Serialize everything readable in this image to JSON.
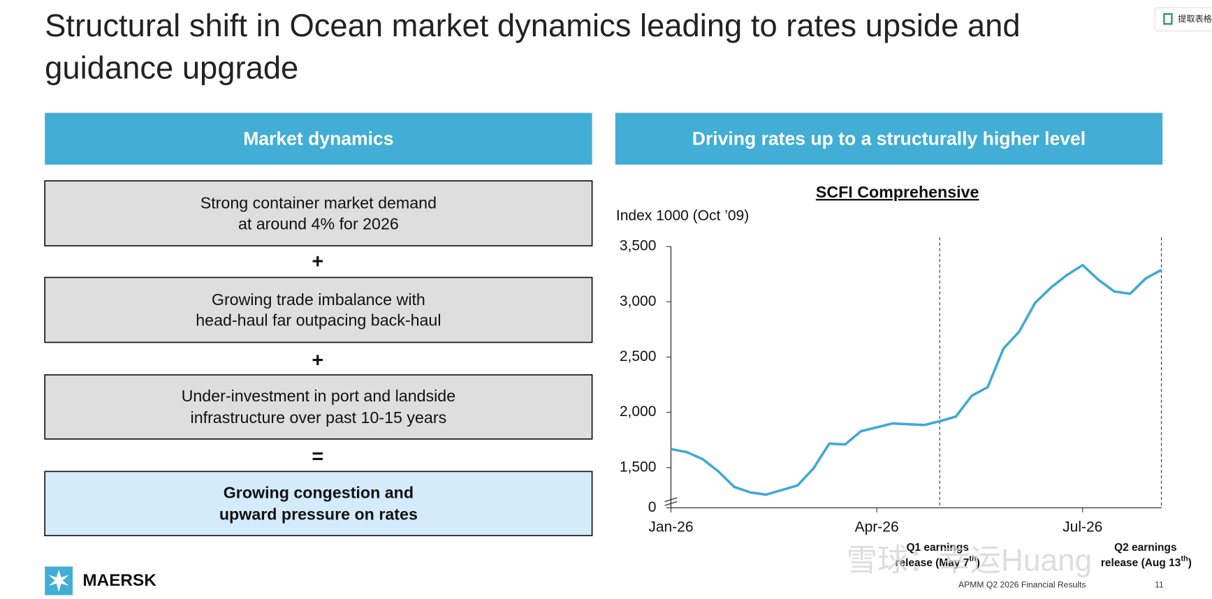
{
  "toolbar": {
    "button": "提取表格"
  },
  "header": {
    "title_lines": [
      "Structural shift in Ocean market dynamics leading to rates upside and",
      "guidance upgrade"
    ]
  },
  "left_panel": {
    "heading": "Market dynamics",
    "boxes": [
      {
        "lines": [
          "Strong container market demand",
          "at around 4% for 2026"
        ]
      },
      {
        "lines": [
          "Growing trade imbalance with",
          "head-haul far outpacing back-haul"
        ]
      },
      {
        "lines": [
          "Under-investment in port and landside",
          "infrastructure over past 10-15 years"
        ]
      },
      {
        "lines": [
          "Growing congestion and",
          "upward pressure on rates"
        ]
      }
    ],
    "operators": [
      "+",
      "+",
      "="
    ]
  },
  "right_panel": {
    "heading": "Driving rates up to a structurally higher level"
  },
  "chart_data": {
    "type": "line",
    "title": "SCFI Comprehensive",
    "y_label": "Index 1000 (Oct ’09)",
    "categories": [
      "Jan-26",
      null,
      null,
      null,
      null,
      null,
      null,
      null,
      null,
      null,
      null,
      null,
      null,
      "Apr-26",
      null,
      null,
      null,
      null,
      null,
      null,
      null,
      null,
      null,
      null,
      null,
      null,
      "Jul-26",
      null,
      null,
      null,
      null,
      null
    ],
    "series": [
      {
        "color": "#3fa9d5",
        "values": [
          1668,
          1640,
          1577,
          1465,
          1325,
          1276,
          1255,
          1297,
          1339,
          1493,
          1717,
          1710,
          1829,
          1864,
          1899,
          1892,
          1885,
          1920,
          1962,
          2150,
          2227,
          2577,
          2731,
          2990,
          3129,
          3241,
          3332,
          3199,
          3094,
          3073,
          3213,
          3290
        ]
      }
    ],
    "ylim": [
      0,
      3500
    ],
    "yticks": [
      0,
      {
        "value": 1500,
        "label": "1,500"
      },
      {
        "value": 2000,
        "label": "2,000"
      },
      {
        "value": 2500,
        "label": "2,500"
      },
      {
        "value": 3000,
        "label": "3,000"
      },
      {
        "value": 3500,
        "label": "3,500"
      }
    ],
    "axis_break": true,
    "annotations": [
      {
        "line1": "Q1 earnings",
        "line2": "release (May 7",
        "sup": "th",
        "end": ")"
      },
      {
        "line1": "Q2 earnings",
        "line2": "release (Aug 13",
        "sup": "th",
        "end": ")"
      }
    ]
  },
  "footer": {
    "logo": "MAERSK",
    "source": "APMM Q2 2026 Financial Results",
    "page": "11"
  },
  "watermark": "雪球：幸运Huang"
}
